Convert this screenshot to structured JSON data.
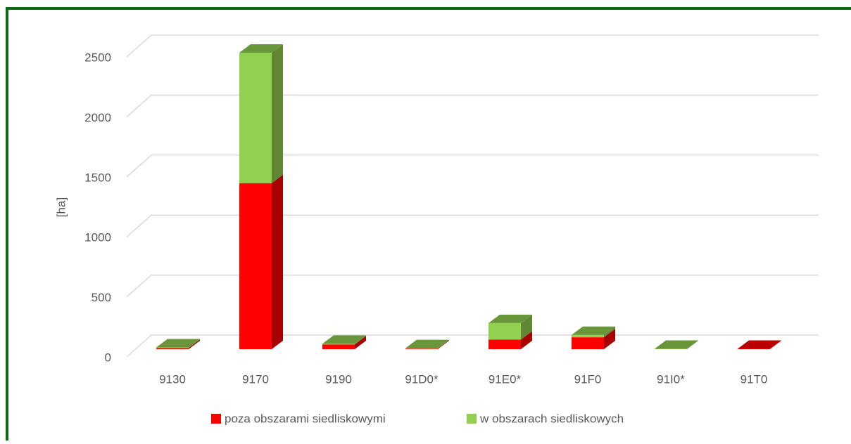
{
  "chart_data": {
    "type": "bar3d_stacked",
    "y_label": "[ha]",
    "categories": [
      "9130",
      "9170",
      "9190",
      "91D0*",
      "91E0*",
      "91F0",
      "91I0*",
      "91T0"
    ],
    "series": [
      {
        "name": "poza obszarami siedliskowymi",
        "color": "#ff0000",
        "values": [
          10,
          1400,
          40,
          5,
          80,
          100,
          0,
          3
        ]
      },
      {
        "name": "w obszarach siedliskowych",
        "color": "#92d050",
        "values": [
          5,
          1100,
          5,
          3,
          140,
          20,
          3,
          0
        ]
      }
    ],
    "ylim": [
      0,
      2500
    ],
    "yticks": [
      0,
      500,
      1000,
      1500,
      2000,
      2500
    ],
    "grid": true,
    "legend": "bottom"
  }
}
